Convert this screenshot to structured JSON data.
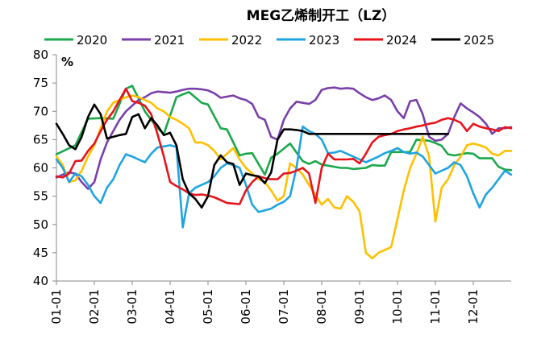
{
  "chart_data": {
    "type": "line",
    "title": "MEG乙烯制开工（LZ）",
    "unit_label": "%",
    "ylim": [
      40,
      80
    ],
    "yticks": [
      40,
      45,
      50,
      55,
      60,
      65,
      70,
      75,
      80
    ],
    "x_months": [
      "01-01",
      "02-01",
      "03-01",
      "04-01",
      "05-01",
      "06-01",
      "07-01",
      "08-01",
      "09-01",
      "10-01",
      "11-01",
      "12-01"
    ],
    "grid": false,
    "legend_position": "top",
    "series": [
      {
        "name": "2020",
        "color": "#1aa84a",
        "x": [
          1,
          4,
          6,
          8,
          10,
          12,
          13,
          14,
          15,
          17,
          18,
          20,
          21,
          22,
          24,
          25,
          27,
          28,
          30,
          31,
          32,
          34,
          35,
          36,
          38,
          40,
          41,
          42,
          43,
          45,
          46,
          47,
          48,
          50,
          51,
          52,
          53,
          54,
          55,
          57,
          58,
          60,
          61,
          62,
          63,
          64,
          65,
          66,
          67,
          68,
          70,
          71,
          72,
          73
        ],
        "y": [
          62.4,
          64.0,
          68.7,
          68.8,
          68.7,
          74.0,
          74.5,
          72.3,
          70.0,
          67.0,
          66.0,
          72.5,
          73.0,
          73.4,
          71.5,
          71.2,
          67.0,
          66.8,
          62.2,
          62.5,
          62.6,
          58.8,
          61.8,
          62.5,
          64.3,
          61.2,
          60.7,
          61.2,
          60.6,
          60.2,
          60.0,
          60.0,
          59.8,
          60.0,
          60.5,
          60.4,
          60.4,
          62.8,
          62.8,
          62.8,
          65.0,
          64.8,
          64.4,
          63.9,
          62.4,
          62.2,
          62.4,
          62.6,
          62.5,
          61.7,
          61.7,
          60.2,
          59.7,
          59.6
        ]
      },
      {
        "name": "2021",
        "color": "#7a3fa8",
        "x": [
          1,
          2,
          3,
          4,
          5,
          6,
          7,
          8,
          9,
          10,
          11,
          12,
          13,
          14,
          15,
          16,
          17,
          18,
          19,
          20,
          21,
          22,
          23,
          24,
          25,
          26,
          27,
          28,
          29,
          30,
          31,
          32,
          33,
          34,
          35,
          36,
          37,
          38,
          39,
          40,
          41,
          42,
          43,
          44,
          45,
          46,
          47,
          48,
          49,
          50,
          51,
          52,
          53,
          54,
          55,
          56,
          57,
          58,
          59,
          60,
          61,
          62,
          63,
          64,
          65,
          66,
          67,
          68,
          69,
          70,
          71,
          72,
          73
        ],
        "y": [
          58.3,
          58.8,
          59.2,
          59.0,
          57.5,
          56.3,
          57.5,
          61.5,
          64.5,
          66.5,
          68.5,
          70.0,
          71.0,
          72.0,
          72.5,
          73.2,
          73.5,
          73.4,
          73.3,
          73.5,
          73.8,
          74.0,
          74.0,
          73.9,
          73.7,
          73.2,
          72.4,
          72.6,
          72.8,
          72.3,
          72.0,
          71.3,
          69.0,
          68.5,
          65.5,
          65.0,
          68.5,
          70.5,
          71.7,
          71.5,
          71.3,
          72.0,
          73.8,
          74.1,
          74.2,
          74.0,
          74.1,
          74.0,
          73.2,
          72.5,
          72.0,
          72.3,
          72.8,
          72.0,
          70.0,
          68.8,
          71.8,
          72.0,
          69.5,
          65.5,
          64.8,
          65.0,
          66.0,
          69.0,
          71.4,
          70.5,
          69.8,
          69.0,
          67.8,
          66.0,
          67.0,
          67.0,
          67.2
        ]
      },
      {
        "name": "2022",
        "color": "#ffc000",
        "x": [
          1,
          2,
          3,
          4,
          5,
          6,
          7,
          8,
          9,
          10,
          11,
          12,
          13,
          14,
          15,
          16,
          17,
          18,
          19,
          20,
          21,
          22,
          23,
          24,
          25,
          26,
          27,
          28,
          29,
          30,
          31,
          32,
          33,
          34,
          35,
          36,
          37,
          38,
          39,
          40,
          41,
          42,
          43,
          44,
          45,
          46,
          47,
          48,
          49,
          50,
          51,
          52,
          53,
          54,
          55,
          56,
          57,
          58,
          59,
          60,
          61,
          62,
          63,
          64,
          65,
          66,
          67,
          68,
          69,
          70,
          71,
          72,
          73
        ],
        "y": [
          62.0,
          60.5,
          57.5,
          57.8,
          59.5,
          62.0,
          64.0,
          67.0,
          70.0,
          71.5,
          72.0,
          72.5,
          72.8,
          72.5,
          72.0,
          71.5,
          70.5,
          70.0,
          69.0,
          68.5,
          67.8,
          67.0,
          64.5,
          64.5,
          64.0,
          63.0,
          61.5,
          62.5,
          63.5,
          61.5,
          60.0,
          59.0,
          58.0,
          57.5,
          56.0,
          54.2,
          55.0,
          60.8,
          60.0,
          58.8,
          57.0,
          55.2,
          53.5,
          54.5,
          53.0,
          52.8,
          55.0,
          54.0,
          52.3,
          45.0,
          44.0,
          45.0,
          45.5,
          46.0,
          51.0,
          56.0,
          60.0,
          62.5,
          65.5,
          62.0,
          50.5,
          56.5,
          58.0,
          60.5,
          62.0,
          64.0,
          64.3,
          64.0,
          63.6,
          62.5,
          62.2,
          63.0,
          63.0
        ]
      },
      {
        "name": "2023",
        "color": "#1ea4e0",
        "x": [
          1,
          2,
          3,
          4,
          5,
          6,
          7,
          8,
          9,
          10,
          11,
          12,
          13,
          14,
          15,
          16,
          17,
          18,
          19,
          20,
          21,
          22,
          23,
          24,
          25,
          26,
          27,
          28,
          29,
          30,
          31,
          32,
          33,
          34,
          35,
          36,
          37,
          38,
          39,
          40,
          41,
          42,
          43,
          44,
          45,
          46,
          47,
          48,
          49,
          50,
          51,
          52,
          53,
          54,
          55,
          56,
          57,
          58,
          59,
          60,
          61,
          62,
          63,
          64,
          65,
          66,
          67,
          68,
          69,
          70,
          71,
          72,
          73
        ],
        "y": [
          61.5,
          60.0,
          57.5,
          59.0,
          58.5,
          57.0,
          55.0,
          53.8,
          56.5,
          58.0,
          60.5,
          62.4,
          62.0,
          61.5,
          61.0,
          62.5,
          63.6,
          63.8,
          64.0,
          63.7,
          49.5,
          55.5,
          56.5,
          57.0,
          57.5,
          58.5,
          60.0,
          60.8,
          60.5,
          60.0,
          57.0,
          53.5,
          52.2,
          52.5,
          52.8,
          53.5,
          54.0,
          55.0,
          60.0,
          67.3,
          66.5,
          66.0,
          65.0,
          62.6,
          62.7,
          63.0,
          62.5,
          62.0,
          61.5,
          61.0,
          61.5,
          62.0,
          62.6,
          63.0,
          63.5,
          62.8,
          62.5,
          62.7,
          62.0,
          60.5,
          59.0,
          59.5,
          60.0,
          61.0,
          60.5,
          58.5,
          55.5,
          53.0,
          55.3,
          56.5,
          58.0,
          59.5,
          58.8
        ]
      },
      {
        "name": "2024",
        "color": "#e8141c",
        "x": [
          1,
          2,
          3,
          4,
          5,
          6,
          7,
          8,
          9,
          10,
          11,
          12,
          13,
          14,
          15,
          16,
          17,
          18,
          19,
          20,
          21,
          22,
          23,
          24,
          25,
          26,
          27,
          28,
          29,
          30,
          31,
          32,
          33,
          34,
          35,
          36,
          37,
          38,
          39,
          40,
          41,
          42,
          43,
          44,
          45,
          46,
          47,
          48,
          49,
          50,
          51,
          52,
          53,
          54,
          55,
          56,
          57,
          58,
          59,
          60,
          61,
          62,
          63,
          64,
          65,
          66,
          67,
          68,
          69,
          70,
          71,
          72,
          73
        ],
        "y": [
          58.5,
          58.3,
          59.0,
          61.2,
          61.3,
          63.0,
          64.3,
          66.5,
          68.5,
          70.0,
          72.0,
          74.0,
          71.8,
          71.5,
          71.0,
          69.5,
          66.0,
          62.0,
          57.5,
          56.8,
          56.2,
          55.5,
          55.2,
          55.3,
          55.1,
          54.8,
          54.3,
          53.8,
          53.7,
          53.6,
          56.0,
          57.5,
          58.5,
          58.2,
          58.0,
          58.0,
          59.0,
          59.1,
          59.5,
          60.0,
          59.0,
          53.8,
          60.0,
          62.5,
          61.5,
          61.5,
          61.5,
          61.6,
          60.8,
          62.5,
          64.5,
          65.5,
          65.8,
          66.0,
          66.5,
          66.8,
          67.0,
          67.3,
          67.5,
          67.8,
          68.0,
          68.5,
          68.8,
          68.5,
          68.0,
          66.5,
          67.8,
          67.3,
          67.0,
          66.8,
          66.5,
          67.2,
          67.0
        ]
      },
      {
        "name": "2025",
        "color": "#000000",
        "x": [
          1,
          2,
          3,
          4,
          5,
          6,
          7,
          8,
          9,
          10,
          11,
          12,
          13,
          14,
          15,
          16,
          17,
          18,
          19,
          20,
          21,
          22,
          23,
          24,
          25,
          26,
          27,
          28,
          29,
          30,
          31,
          32,
          33,
          34,
          35,
          36,
          37,
          38,
          39,
          40,
          41,
          42,
          43,
          44,
          45,
          46,
          47,
          48,
          49,
          50,
          51,
          52,
          53,
          54,
          55,
          56,
          57,
          58,
          59,
          60,
          61,
          62,
          63
        ],
        "y": [
          67.8,
          66.0,
          64.0,
          63.3,
          65.5,
          69.0,
          71.2,
          69.5,
          65.2,
          65.5,
          65.8,
          66.0,
          69.0,
          69.5,
          67.0,
          68.8,
          67.5,
          65.8,
          66.2,
          64.0,
          58.0,
          55.5,
          54.5,
          53.0,
          55.0,
          60.5,
          62.2,
          61.0,
          60.7,
          57.0,
          59.0,
          58.7,
          58.5,
          57.3,
          59.2,
          65.0,
          66.8,
          66.8,
          66.7,
          66.5,
          66.0,
          66.0,
          66.0,
          66.0,
          66.0,
          66.0,
          66.0,
          66.0,
          66.0,
          66.0,
          66.0,
          66.0,
          66.0,
          66.0,
          66.0,
          66.0,
          66.0,
          66.0,
          66.0,
          66.0,
          66.0,
          66.0,
          66.0
        ]
      }
    ]
  }
}
